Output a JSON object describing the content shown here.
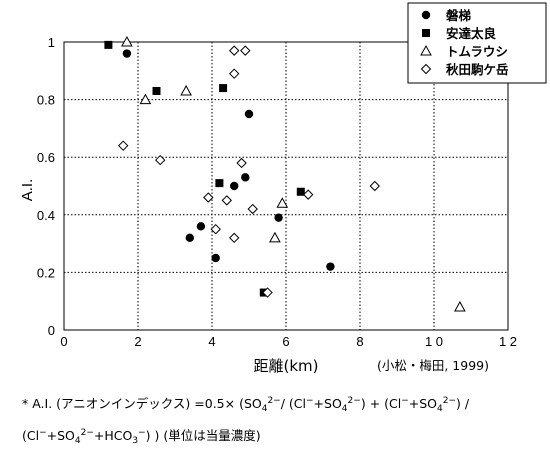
{
  "chart_data": {
    "type": "scatter",
    "xlabel": "距離(km)",
    "ylabel": "A.I.",
    "xlim": [
      0,
      12
    ],
    "ylim": [
      0,
      1
    ],
    "x_ticks": [
      "0",
      "2",
      "4",
      "6",
      "8",
      "1 0",
      "1 2"
    ],
    "y_ticks": [
      "0",
      "0.2",
      "0.4",
      "0.6",
      "0.8",
      "1"
    ],
    "grid": true,
    "legend_position": "top-right",
    "citation": "(小松・梅田, 1999)",
    "series": [
      {
        "name": "磐梯",
        "marker": "filled-circle",
        "points": [
          [
            1.7,
            0.96
          ],
          [
            5.0,
            0.75
          ],
          [
            4.9,
            0.53
          ],
          [
            4.6,
            0.5
          ],
          [
            5.8,
            0.39
          ],
          [
            3.7,
            0.36
          ],
          [
            3.4,
            0.32
          ],
          [
            4.1,
            0.25
          ],
          [
            7.2,
            0.22
          ]
        ]
      },
      {
        "name": "安達太良",
        "marker": "filled-square",
        "points": [
          [
            1.2,
            0.99
          ],
          [
            2.5,
            0.83
          ],
          [
            4.3,
            0.84
          ],
          [
            4.2,
            0.51
          ],
          [
            6.4,
            0.48
          ],
          [
            5.4,
            0.13
          ]
        ]
      },
      {
        "name": "トムラウシ",
        "marker": "open-triangle",
        "points": [
          [
            1.7,
            1.0
          ],
          [
            2.2,
            0.8
          ],
          [
            3.3,
            0.83
          ],
          [
            5.9,
            0.44
          ],
          [
            5.7,
            0.32
          ],
          [
            10.7,
            0.08
          ]
        ]
      },
      {
        "name": "秋田駒ケ岳",
        "marker": "open-diamond",
        "points": [
          [
            4.6,
            0.97
          ],
          [
            4.9,
            0.97
          ],
          [
            4.6,
            0.89
          ],
          [
            1.6,
            0.64
          ],
          [
            2.6,
            0.59
          ],
          [
            4.8,
            0.58
          ],
          [
            4.4,
            0.45
          ],
          [
            3.9,
            0.46
          ],
          [
            5.1,
            0.42
          ],
          [
            6.6,
            0.47
          ],
          [
            8.4,
            0.5
          ],
          [
            4.1,
            0.35
          ],
          [
            4.6,
            0.32
          ],
          [
            5.5,
            0.13
          ]
        ]
      }
    ]
  },
  "footnote": {
    "line1": {
      "t1": "* A.I. (アニオンインデックス) =0.5× (SO",
      "sub1": "4",
      "sup1": "2−",
      "t2": "/ (Cl",
      "sup2": "−",
      "t3": "+SO",
      "sub2": "4",
      "sup3": "2−",
      "t4": ") + (Cl",
      "sup4": "−",
      "t5": "+SO",
      "sub3": "4",
      "sup5": "2−",
      "t6": ") /"
    },
    "line2": {
      "t1": "(Cl",
      "sup1": "−",
      "t2": "+SO",
      "sub1": "4",
      "sup2": "2−",
      "t3": "+HCO",
      "sub2": "3",
      "sup3": "−",
      "t4": ") ) (単位は当量濃度)"
    }
  }
}
